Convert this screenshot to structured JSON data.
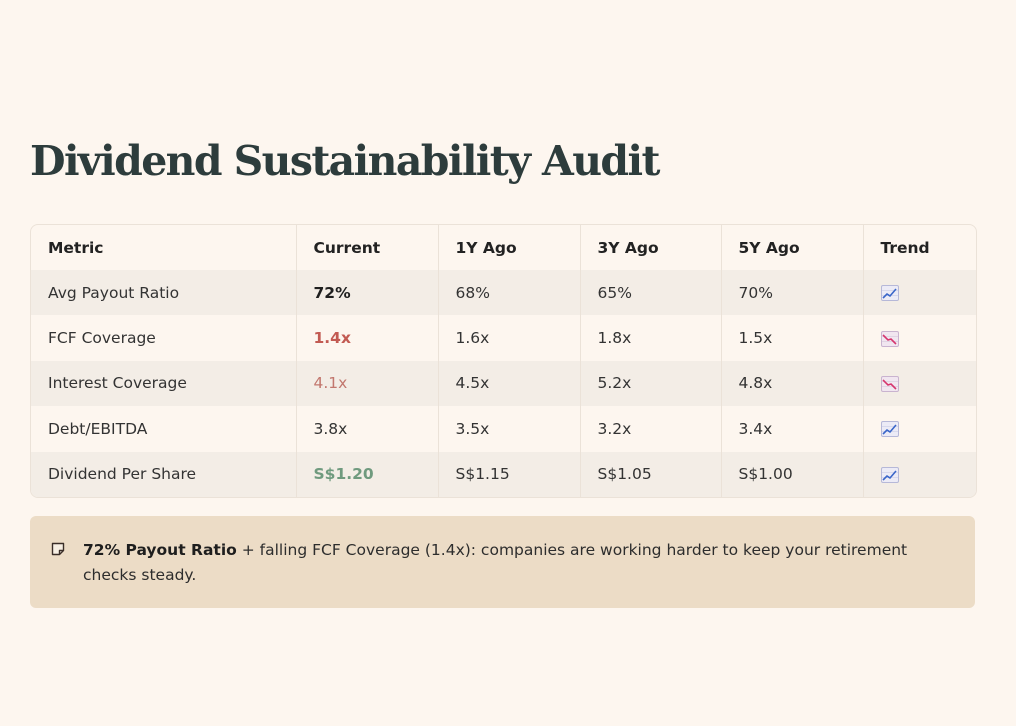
{
  "title": "Dividend Sustainability Audit",
  "table": {
    "headers": [
      "Metric",
      "Current",
      "1Y Ago",
      "3Y Ago",
      "5Y Ago",
      "Trend"
    ],
    "rows": [
      {
        "metric": "Avg Payout Ratio",
        "current": "72%",
        "y1": "68%",
        "y3": "65%",
        "y5": "70%",
        "trend": "chart-increasing-icon"
      },
      {
        "metric": "FCF Coverage",
        "current": "1.4x",
        "y1": "1.6x",
        "y3": "1.8x",
        "y5": "1.5x",
        "trend": "chart-decreasing-icon"
      },
      {
        "metric": "Interest Coverage",
        "current": "4.1x",
        "y1": "4.5x",
        "y3": "5.2x",
        "y5": "4.8x",
        "trend": "chart-decreasing-icon"
      },
      {
        "metric": "Debt/EBITDA",
        "current": "3.8x",
        "y1": "3.5x",
        "y3": "3.2x",
        "y5": "3.4x",
        "trend": "chart-increasing-icon"
      },
      {
        "metric": "Dividend Per Share",
        "current": "S$1.20",
        "y1": "S$1.15",
        "y3": "S$1.05",
        "y5": "S$1.00",
        "trend": "chart-increasing-icon"
      }
    ]
  },
  "note": {
    "icon": "memo-icon",
    "strong": "72% Payout Ratio",
    "text": " + falling FCF Coverage (1.4x): companies are working harder to keep your retirement checks steady."
  },
  "colors": {
    "background": "#fdf6ef",
    "title": "#2d3c3c",
    "alert_red": "#c25a52",
    "positive_green": "#6f9a7e",
    "note_bg": "#ecdcc6"
  }
}
